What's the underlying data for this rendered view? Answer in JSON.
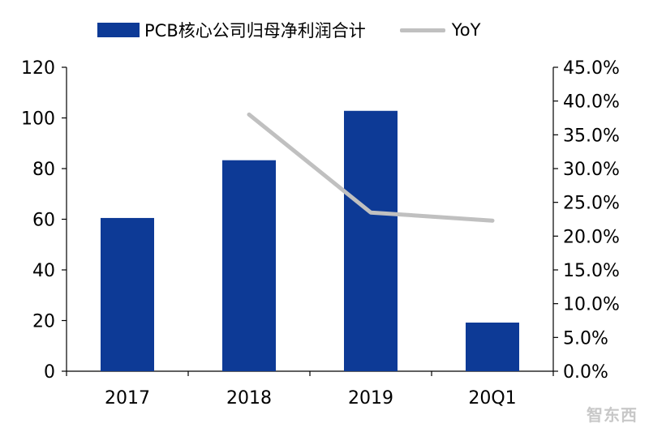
{
  "chart_data": {
    "type": "bar",
    "categories": [
      "2017",
      "2018",
      "2019",
      "20Q1"
    ],
    "series": [
      {
        "name": "PCB核心公司归母净利润合计",
        "type": "bar",
        "axis": "left",
        "color": "#0d3a96",
        "values": [
          60.5,
          83.3,
          102.8,
          19.2
        ]
      },
      {
        "name": "YoY",
        "type": "line",
        "axis": "right",
        "color": "#c0c0c0",
        "values": [
          null,
          0.38,
          0.235,
          0.223
        ]
      }
    ],
    "y_left": {
      "lim": [
        0,
        120
      ],
      "ticks": [
        "0",
        "20",
        "40",
        "60",
        "80",
        "100",
        "120"
      ]
    },
    "y_right": {
      "lim": [
        0,
        0.45
      ],
      "ticks": [
        "0.0%",
        "5.0%",
        "10.0%",
        "15.0%",
        "20.0%",
        "25.0%",
        "30.0%",
        "35.0%",
        "40.0%",
        "45.0%"
      ]
    },
    "grid": false,
    "legend_position": "top"
  },
  "watermark": "智东西"
}
